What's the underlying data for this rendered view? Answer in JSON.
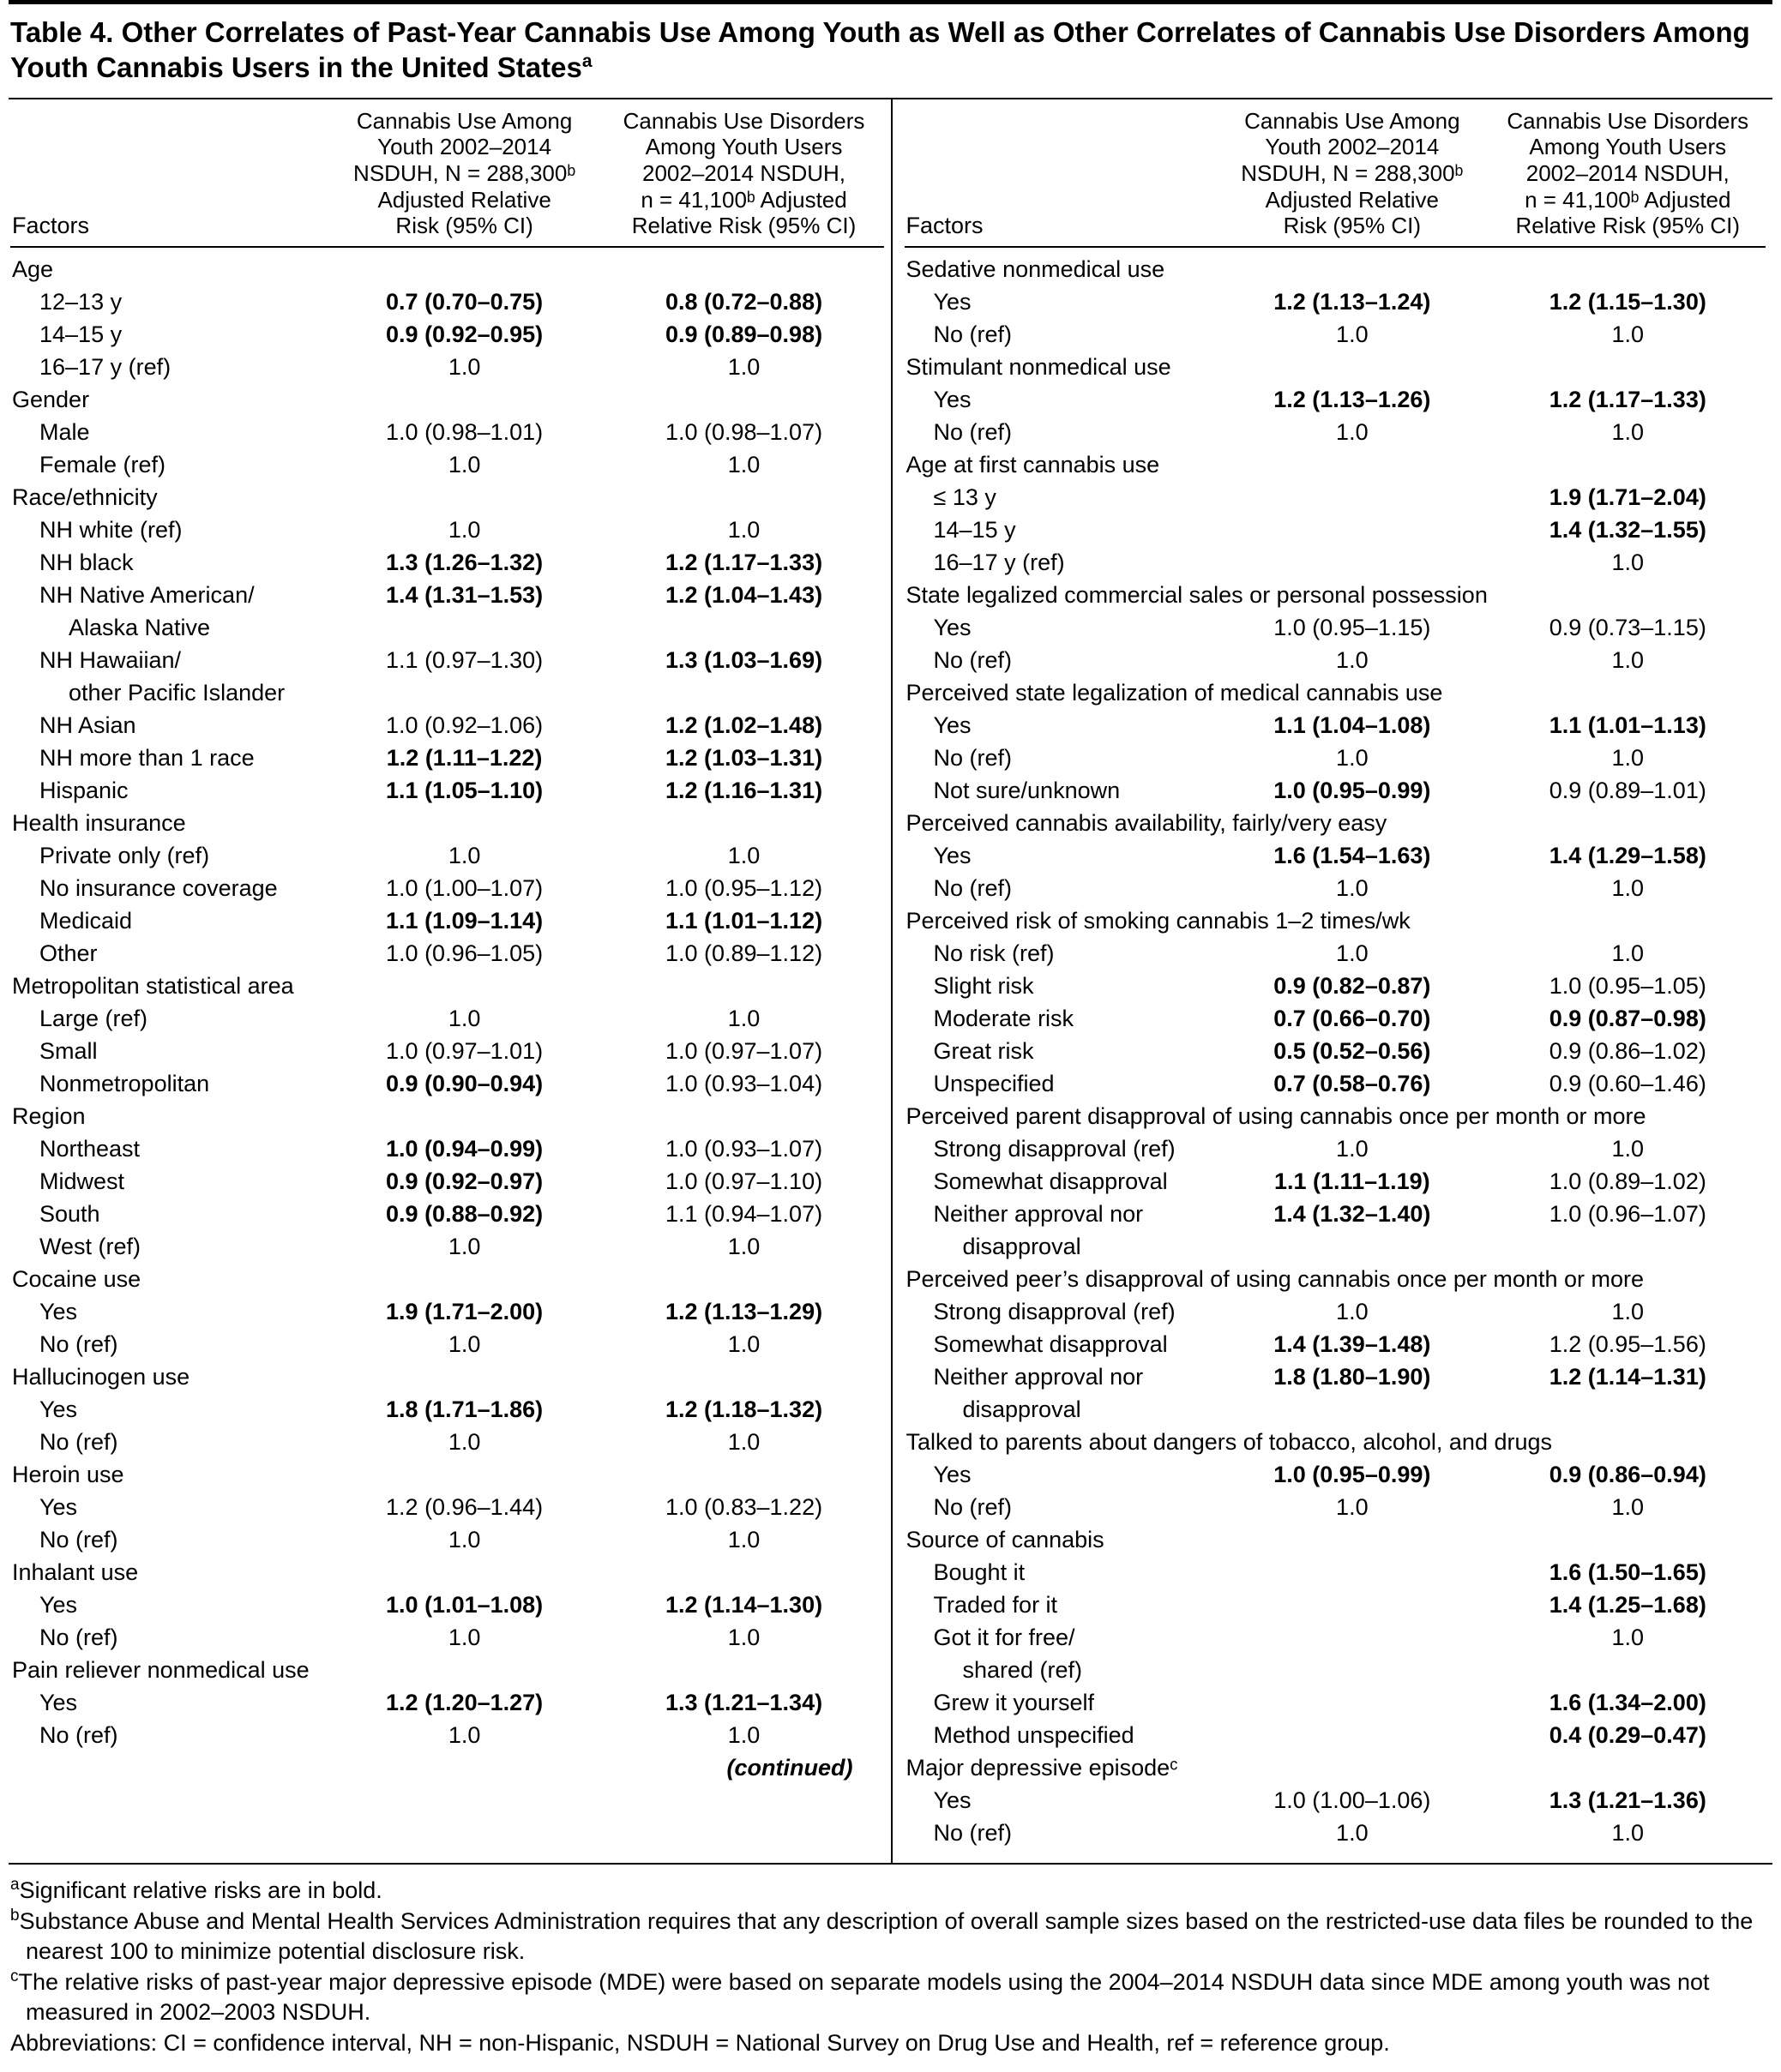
{
  "title": {
    "text": "Table 4. Other Correlates of Past-Year Cannabis Use Among Youth as Well as Other Correlates of Cannabis Use Disorders Among Youth Cannabis Users in the United States",
    "sup": "a"
  },
  "header": {
    "factors": "Factors",
    "col1": "Cannabis Use Among\nYouth 2002–2014\nNSDUH, N = 288,300ᵇ\nAdjusted Relative\nRisk (95% CI)",
    "col2": "Cannabis Use Disorders\nAmong Youth Users\n2002–2014 NSDUH,\nn = 41,100ᵇ Adjusted\nRelative Risk (95% CI)"
  },
  "left_rows": [
    {
      "t": "group",
      "label": "Age"
    },
    {
      "t": "item",
      "label": "12–13 y",
      "v1": "0.7 (0.70–0.75)",
      "b1": true,
      "v2": "0.8 (0.72–0.88)",
      "b2": true
    },
    {
      "t": "item",
      "label": "14–15 y",
      "v1": "0.9 (0.92–0.95)",
      "b1": true,
      "v2": "0.9 (0.89–0.98)",
      "b2": true
    },
    {
      "t": "item",
      "label": "16–17 y (ref)",
      "v1": "1.0",
      "b1": false,
      "v2": "1.0",
      "b2": false
    },
    {
      "t": "group",
      "label": "Gender"
    },
    {
      "t": "item",
      "label": "Male",
      "v1": "1.0 (0.98–1.01)",
      "b1": false,
      "v2": "1.0 (0.98–1.07)",
      "b2": false
    },
    {
      "t": "item",
      "label": "Female (ref)",
      "v1": "1.0",
      "b1": false,
      "v2": "1.0",
      "b2": false
    },
    {
      "t": "group",
      "label": "Race/ethnicity"
    },
    {
      "t": "item",
      "label": "NH white (ref)",
      "v1": "1.0",
      "b1": false,
      "v2": "1.0",
      "b2": false
    },
    {
      "t": "item",
      "label": "NH black",
      "v1": "1.3 (1.26–1.32)",
      "b1": true,
      "v2": "1.2 (1.17–1.33)",
      "b2": true
    },
    {
      "t": "item",
      "label": "NH Native American/",
      "v1": "1.4 (1.31–1.53)",
      "b1": true,
      "v2": "1.2 (1.04–1.43)",
      "b2": true
    },
    {
      "t": "cont",
      "label": "Alaska Native"
    },
    {
      "t": "item",
      "label": "NH Hawaiian/",
      "v1": "1.1 (0.97–1.30)",
      "b1": false,
      "v2": "1.3 (1.03–1.69)",
      "b2": true
    },
    {
      "t": "cont",
      "label": "other Pacific Islander"
    },
    {
      "t": "item",
      "label": "NH Asian",
      "v1": "1.0 (0.92–1.06)",
      "b1": false,
      "v2": "1.2 (1.02–1.48)",
      "b2": true
    },
    {
      "t": "item",
      "label": "NH more than 1 race",
      "v1": "1.2 (1.11–1.22)",
      "b1": true,
      "v2": "1.2 (1.03–1.31)",
      "b2": true
    },
    {
      "t": "item",
      "label": "Hispanic",
      "v1": "1.1 (1.05–1.10)",
      "b1": true,
      "v2": "1.2 (1.16–1.31)",
      "b2": true
    },
    {
      "t": "group",
      "label": "Health insurance"
    },
    {
      "t": "item",
      "label": "Private only (ref)",
      "v1": "1.0",
      "b1": false,
      "v2": "1.0",
      "b2": false
    },
    {
      "t": "item",
      "label": "No insurance coverage",
      "v1": "1.0 (1.00–1.07)",
      "b1": false,
      "v2": "1.0 (0.95–1.12)",
      "b2": false
    },
    {
      "t": "item",
      "label": "Medicaid",
      "v1": "1.1 (1.09–1.14)",
      "b1": true,
      "v2": "1.1 (1.01–1.12)",
      "b2": true
    },
    {
      "t": "item",
      "label": "Other",
      "v1": "1.0 (0.96–1.05)",
      "b1": false,
      "v2": "1.0 (0.89–1.12)",
      "b2": false
    },
    {
      "t": "group",
      "label": "Metropolitan statistical area"
    },
    {
      "t": "item",
      "label": "Large (ref)",
      "v1": "1.0",
      "b1": false,
      "v2": "1.0",
      "b2": false
    },
    {
      "t": "item",
      "label": "Small",
      "v1": "1.0 (0.97–1.01)",
      "b1": false,
      "v2": "1.0 (0.97–1.07)",
      "b2": false
    },
    {
      "t": "item",
      "label": "Nonmetropolitan",
      "v1": "0.9 (0.90–0.94)",
      "b1": true,
      "v2": "1.0 (0.93–1.04)",
      "b2": false
    },
    {
      "t": "group",
      "label": "Region"
    },
    {
      "t": "item",
      "label": "Northeast",
      "v1": "1.0 (0.94–0.99)",
      "b1": true,
      "v2": "1.0 (0.93–1.07)",
      "b2": false
    },
    {
      "t": "item",
      "label": "Midwest",
      "v1": "0.9 (0.92–0.97)",
      "b1": true,
      "v2": "1.0 (0.97–1.10)",
      "b2": false
    },
    {
      "t": "item",
      "label": "South",
      "v1": "0.9 (0.88–0.92)",
      "b1": true,
      "v2": "1.1 (0.94–1.07)",
      "b2": false
    },
    {
      "t": "item",
      "label": "West (ref)",
      "v1": "1.0",
      "b1": false,
      "v2": "1.0",
      "b2": false
    },
    {
      "t": "group",
      "label": "Cocaine use"
    },
    {
      "t": "item",
      "label": "Yes",
      "v1": "1.9 (1.71–2.00)",
      "b1": true,
      "v2": "1.2 (1.13–1.29)",
      "b2": true
    },
    {
      "t": "item",
      "label": "No (ref)",
      "v1": "1.0",
      "b1": false,
      "v2": "1.0",
      "b2": false
    },
    {
      "t": "group",
      "label": "Hallucinogen use"
    },
    {
      "t": "item",
      "label": "Yes",
      "v1": "1.8 (1.71–1.86)",
      "b1": true,
      "v2": "1.2 (1.18–1.32)",
      "b2": true
    },
    {
      "t": "item",
      "label": "No (ref)",
      "v1": "1.0",
      "b1": false,
      "v2": "1.0",
      "b2": false
    },
    {
      "t": "group",
      "label": "Heroin use"
    },
    {
      "t": "item",
      "label": "Yes",
      "v1": "1.2 (0.96–1.44)",
      "b1": false,
      "v2": "1.0 (0.83–1.22)",
      "b2": false
    },
    {
      "t": "item",
      "label": "No (ref)",
      "v1": "1.0",
      "b1": false,
      "v2": "1.0",
      "b2": false
    },
    {
      "t": "group",
      "label": "Inhalant use"
    },
    {
      "t": "item",
      "label": "Yes",
      "v1": "1.0 (1.01–1.08)",
      "b1": true,
      "v2": "1.2 (1.14–1.30)",
      "b2": true
    },
    {
      "t": "item",
      "label": "No (ref)",
      "v1": "1.0",
      "b1": false,
      "v2": "1.0",
      "b2": false
    },
    {
      "t": "group",
      "label": "Pain reliever nonmedical use"
    },
    {
      "t": "item",
      "label": "Yes",
      "v1": "1.2 (1.20–1.27)",
      "b1": true,
      "v2": "1.3 (1.21–1.34)",
      "b2": true
    },
    {
      "t": "item",
      "label": "No (ref)",
      "v1": "1.0",
      "b1": false,
      "v2": "1.0",
      "b2": false
    },
    {
      "t": "continued",
      "label": "(continued)"
    }
  ],
  "right_rows": [
    {
      "t": "group",
      "label": "Sedative nonmedical use"
    },
    {
      "t": "item",
      "label": "Yes",
      "v1": "1.2 (1.13–1.24)",
      "b1": true,
      "v2": "1.2 (1.15–1.30)",
      "b2": true
    },
    {
      "t": "item",
      "label": "No (ref)",
      "v1": "1.0",
      "b1": false,
      "v2": "1.0",
      "b2": false
    },
    {
      "t": "group",
      "label": "Stimulant nonmedical use"
    },
    {
      "t": "item",
      "label": "Yes",
      "v1": "1.2 (1.13–1.26)",
      "b1": true,
      "v2": "1.2 (1.17–1.33)",
      "b2": true
    },
    {
      "t": "item",
      "label": "No (ref)",
      "v1": "1.0",
      "b1": false,
      "v2": "1.0",
      "b2": false
    },
    {
      "t": "group",
      "label": "Age at first cannabis use"
    },
    {
      "t": "item",
      "label": "≤ 13 y",
      "v1": "",
      "b1": false,
      "v2": "1.9 (1.71–2.04)",
      "b2": true
    },
    {
      "t": "item",
      "label": "14–15 y",
      "v1": "",
      "b1": false,
      "v2": "1.4 (1.32–1.55)",
      "b2": true
    },
    {
      "t": "item",
      "label": "16–17 y (ref)",
      "v1": "",
      "b1": false,
      "v2": "1.0",
      "b2": false
    },
    {
      "t": "group",
      "label": "State legalized commercial sales or personal possession"
    },
    {
      "t": "item",
      "label": "Yes",
      "v1": "1.0 (0.95–1.15)",
      "b1": false,
      "v2": "0.9 (0.73–1.15)",
      "b2": false
    },
    {
      "t": "item",
      "label": "No (ref)",
      "v1": "1.0",
      "b1": false,
      "v2": "1.0",
      "b2": false
    },
    {
      "t": "group",
      "label": "Perceived state legalization of medical cannabis use"
    },
    {
      "t": "item",
      "label": "Yes",
      "v1": "1.1 (1.04–1.08)",
      "b1": true,
      "v2": "1.1 (1.01–1.13)",
      "b2": true
    },
    {
      "t": "item",
      "label": "No (ref)",
      "v1": "1.0",
      "b1": false,
      "v2": "1.0",
      "b2": false
    },
    {
      "t": "item",
      "label": "Not sure/unknown",
      "v1": "1.0 (0.95–0.99)",
      "b1": true,
      "v2": "0.9 (0.89–1.01)",
      "b2": false
    },
    {
      "t": "group",
      "label": "Perceived cannabis availability, fairly/very easy"
    },
    {
      "t": "item",
      "label": "Yes",
      "v1": "1.6 (1.54–1.63)",
      "b1": true,
      "v2": "1.4 (1.29–1.58)",
      "b2": true
    },
    {
      "t": "item",
      "label": "No (ref)",
      "v1": "1.0",
      "b1": false,
      "v2": "1.0",
      "b2": false
    },
    {
      "t": "group",
      "label": "Perceived risk of smoking cannabis 1–2 times/wk"
    },
    {
      "t": "item",
      "label": "No risk (ref)",
      "v1": "1.0",
      "b1": false,
      "v2": "1.0",
      "b2": false
    },
    {
      "t": "item",
      "label": "Slight risk",
      "v1": "0.9 (0.82–0.87)",
      "b1": true,
      "v2": "1.0 (0.95–1.05)",
      "b2": false
    },
    {
      "t": "item",
      "label": "Moderate risk",
      "v1": "0.7 (0.66–0.70)",
      "b1": true,
      "v2": "0.9 (0.87–0.98)",
      "b2": true
    },
    {
      "t": "item",
      "label": "Great risk",
      "v1": "0.5 (0.52–0.56)",
      "b1": true,
      "v2": "0.9 (0.86–1.02)",
      "b2": false
    },
    {
      "t": "item",
      "label": "Unspecified",
      "v1": "0.7 (0.58–0.76)",
      "b1": true,
      "v2": "0.9 (0.60–1.46)",
      "b2": false
    },
    {
      "t": "group",
      "label": "Perceived parent disapproval of using cannabis once per month or more"
    },
    {
      "t": "item",
      "label": "Strong disapproval (ref)",
      "v1": "1.0",
      "b1": false,
      "v2": "1.0",
      "b2": false
    },
    {
      "t": "item",
      "label": "Somewhat disapproval",
      "v1": "1.1 (1.11–1.19)",
      "b1": true,
      "v2": "1.0 (0.89–1.02)",
      "b2": false
    },
    {
      "t": "item",
      "label": "Neither approval nor",
      "v1": "1.4 (1.32–1.40)",
      "b1": true,
      "v2": "1.0 (0.96–1.07)",
      "b2": false
    },
    {
      "t": "cont",
      "label": "disapproval"
    },
    {
      "t": "group",
      "label": "Perceived peer’s disapproval of using cannabis once per month or more"
    },
    {
      "t": "item",
      "label": "Strong disapproval (ref)",
      "v1": "1.0",
      "b1": false,
      "v2": "1.0",
      "b2": false
    },
    {
      "t": "item",
      "label": "Somewhat disapproval",
      "v1": "1.4 (1.39–1.48)",
      "b1": true,
      "v2": "1.2 (0.95–1.56)",
      "b2": false
    },
    {
      "t": "item",
      "label": "Neither approval nor",
      "v1": "1.8 (1.80–1.90)",
      "b1": true,
      "v2": "1.2 (1.14–1.31)",
      "b2": true
    },
    {
      "t": "cont",
      "label": "disapproval"
    },
    {
      "t": "group",
      "label": "Talked to parents about dangers of tobacco, alcohol, and drugs"
    },
    {
      "t": "item",
      "label": "Yes",
      "v1": "1.0 (0.95–0.99)",
      "b1": true,
      "v2": "0.9 (0.86–0.94)",
      "b2": true
    },
    {
      "t": "item",
      "label": "No (ref)",
      "v1": "1.0",
      "b1": false,
      "v2": "1.0",
      "b2": false
    },
    {
      "t": "group",
      "label": "Source of cannabis"
    },
    {
      "t": "item",
      "label": "Bought it",
      "v1": "",
      "b1": false,
      "v2": "1.6 (1.50–1.65)",
      "b2": true
    },
    {
      "t": "item",
      "label": "Traded for it",
      "v1": "",
      "b1": false,
      "v2": "1.4 (1.25–1.68)",
      "b2": true
    },
    {
      "t": "item",
      "label": "Got it for free/",
      "v1": "",
      "b1": false,
      "v2": "1.0",
      "b2": false
    },
    {
      "t": "cont",
      "label": "shared (ref)"
    },
    {
      "t": "item",
      "label": "Grew it yourself",
      "v1": "",
      "b1": false,
      "v2": "1.6 (1.34–2.00)",
      "b2": true
    },
    {
      "t": "item",
      "label": "Method unspecified",
      "v1": "",
      "b1": false,
      "v2": "0.4 (0.29–0.47)",
      "b2": true
    },
    {
      "t": "group",
      "label": "Major depressive episodeᶜ"
    },
    {
      "t": "item",
      "label": "Yes",
      "v1": "1.0 (1.00–1.06)",
      "b1": false,
      "v2": "1.3 (1.21–1.36)",
      "b2": true
    },
    {
      "t": "item",
      "label": "No (ref)",
      "v1": "1.0",
      "b1": false,
      "v2": "1.0",
      "b2": false
    }
  ],
  "footnotes": [
    {
      "sup": "a",
      "text": "Significant relative risks are in bold."
    },
    {
      "sup": "b",
      "text": "Substance Abuse and Mental Health Services Administration requires that any description of overall sample sizes based on the restricted-use data files be rounded to the nearest 100 to minimize potential disclosure risk."
    },
    {
      "sup": "c",
      "text": "The relative risks of past-year major depressive episode (MDE) were based on separate models using the 2004–2014 NSDUH data since MDE among youth was not measured in 2002–2003 NSDUH."
    },
    {
      "sup": "",
      "text": "Abbreviations: CI = confidence interval, NH = non-Hispanic, NSDUH = National Survey on Drug Use and Health, ref = reference group."
    }
  ]
}
